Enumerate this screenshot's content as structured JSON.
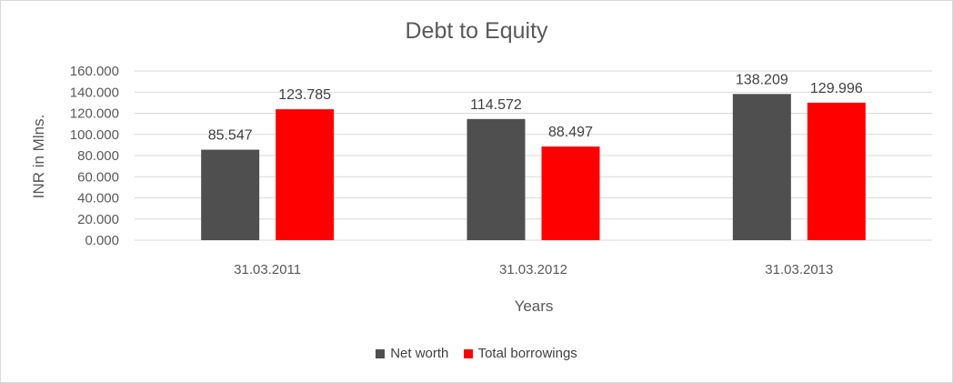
{
  "chart_data": {
    "type": "bar",
    "title": "Debt to Equity",
    "xlabel": "Years",
    "ylabel": "INR in Mlns.",
    "categories": [
      "31.03.2011",
      "31.03.2012",
      "31.03.2013"
    ],
    "series": [
      {
        "name": "Net worth",
        "values": [
          85.547,
          114.572,
          138.209
        ],
        "labels": [
          "85.547",
          "114.572",
          "138.209"
        ],
        "color": "#4f4f4f"
      },
      {
        "name": "Total borrowings",
        "values": [
          123.785,
          88.497,
          129.996
        ],
        "labels": [
          "123.785",
          "88.497",
          "129.996"
        ],
        "color": "#ff0000"
      }
    ],
    "ylim": [
      0,
      160
    ],
    "yticks": [
      0,
      20,
      40,
      60,
      80,
      100,
      120,
      140,
      160
    ],
    "ytick_labels": [
      "0.000",
      "20.000",
      "40.000",
      "60.000",
      "80.000",
      "100.000",
      "120.000",
      "140.000",
      "160.000"
    ],
    "grid": true,
    "legend_position": "bottom"
  }
}
